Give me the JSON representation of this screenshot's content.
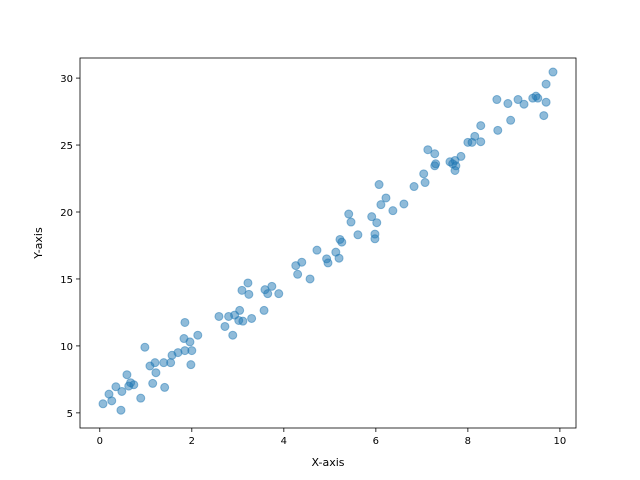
{
  "chart_data": {
    "type": "scatter",
    "x_label": "X-axis",
    "y_label": "Y-axis",
    "color": "#1f77b4",
    "alpha": 0.5,
    "x": [
      0.07,
      0.2,
      0.26,
      0.35,
      0.46,
      0.48,
      0.59,
      0.63,
      0.67,
      0.74,
      0.89,
      0.98,
      1.09,
      1.15,
      1.2,
      1.22,
      1.39,
      1.41,
      1.54,
      1.57,
      1.7,
      1.83,
      1.85,
      1.85,
      1.96,
      1.98,
      2.0,
      2.13,
      2.59,
      2.72,
      2.8,
      2.89,
      2.93,
      3.02,
      3.04,
      3.09,
      3.11,
      3.22,
      3.24,
      3.3,
      3.57,
      3.59,
      3.65,
      3.74,
      3.89,
      4.26,
      4.3,
      4.39,
      4.57,
      4.72,
      4.93,
      4.96,
      5.13,
      5.2,
      5.22,
      5.26,
      5.41,
      5.46,
      5.61,
      5.91,
      5.98,
      5.98,
      6.02,
      6.07,
      6.11,
      6.22,
      6.37,
      6.61,
      6.83,
      7.04,
      7.07,
      7.13,
      7.28,
      7.28,
      7.3,
      7.61,
      7.67,
      7.72,
      7.72,
      7.74,
      7.85,
      8.0,
      8.09,
      8.15,
      8.28,
      8.28,
      8.63,
      8.65,
      8.87,
      8.93,
      9.09,
      9.22,
      9.41,
      9.48,
      9.52,
      9.65,
      9.7,
      9.7,
      9.85
    ],
    "y": [
      5.68,
      6.4,
      5.9,
      6.95,
      5.2,
      6.6,
      7.85,
      7.0,
      7.25,
      7.1,
      6.1,
      9.9,
      8.5,
      7.2,
      8.75,
      8.0,
      8.75,
      6.9,
      8.75,
      9.3,
      9.5,
      10.55,
      11.75,
      9.65,
      10.3,
      8.6,
      9.65,
      10.8,
      12.2,
      11.45,
      12.2,
      10.8,
      12.3,
      11.9,
      12.65,
      14.15,
      11.85,
      14.7,
      13.85,
      12.05,
      12.65,
      14.2,
      13.9,
      14.45,
      13.9,
      16.0,
      15.35,
      16.25,
      15.0,
      17.15,
      16.5,
      16.2,
      17.0,
      16.55,
      17.95,
      17.75,
      19.85,
      19.25,
      18.3,
      19.65,
      18.0,
      18.35,
      19.2,
      22.05,
      20.55,
      21.05,
      20.1,
      20.6,
      21.9,
      22.85,
      22.2,
      24.65,
      24.35,
      23.45,
      23.6,
      23.75,
      23.6,
      23.85,
      23.1,
      23.45,
      24.15,
      25.2,
      25.2,
      25.65,
      25.25,
      26.45,
      28.4,
      26.1,
      28.1,
      26.85,
      28.4,
      28.05,
      28.5,
      28.65,
      28.5,
      27.2,
      28.2,
      29.55,
      30.45
    ],
    "xlim": [
      -0.43,
      10.35
    ],
    "ylim": [
      3.87,
      31.5
    ],
    "xticks": [
      0,
      2,
      4,
      6,
      8,
      10
    ],
    "yticks": [
      5,
      10,
      15,
      20,
      25,
      30
    ]
  }
}
